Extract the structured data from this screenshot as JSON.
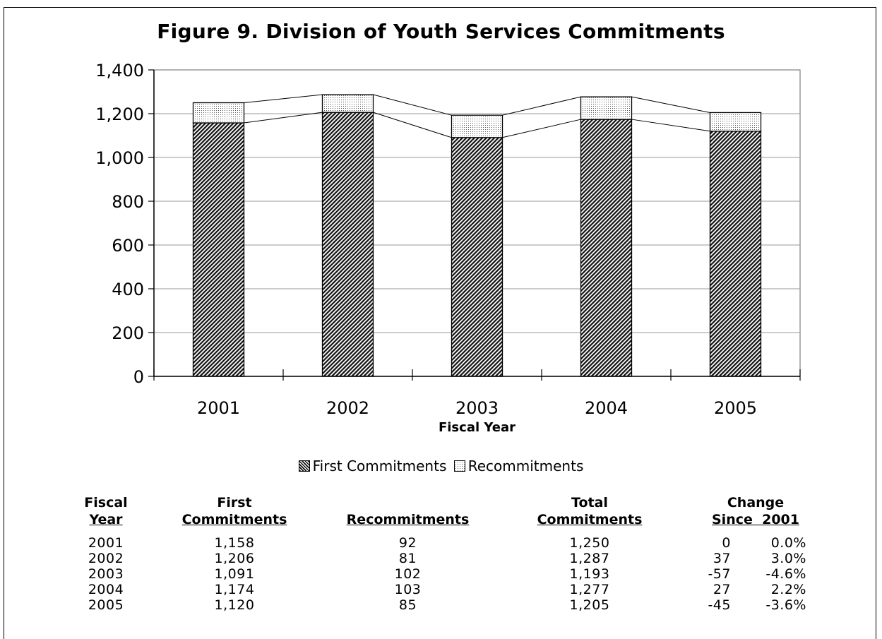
{
  "chart_data": {
    "type": "bar",
    "stacked": true,
    "title": "Figure 9.  Division of Youth Services Commitments",
    "xlabel": "Fiscal Year",
    "ylabel": "",
    "categories": [
      "2001",
      "2002",
      "2003",
      "2004",
      "2005"
    ],
    "series": [
      {
        "name": "First Commitments",
        "values": [
          1158,
          1206,
          1091,
          1174,
          1120
        ],
        "pattern": "dense-hatch"
      },
      {
        "name": "Recommitments",
        "values": [
          92,
          81,
          102,
          103,
          85
        ],
        "pattern": "light-dots"
      }
    ],
    "ylim": [
      0,
      1400
    ],
    "yticks": [
      "0",
      "200",
      "400",
      "600",
      "800",
      "1,000",
      "1,200",
      "1,400"
    ],
    "grid": true,
    "legend": "bottom-center"
  },
  "table": {
    "headers": [
      {
        "top": "Fiscal",
        "bottom": "Year"
      },
      {
        "top": "First",
        "bottom": "Commitments"
      },
      {
        "top": "",
        "bottom": "Recommitments"
      },
      {
        "top": "Total",
        "bottom": "Commitments"
      },
      {
        "top": "Change",
        "bottom": "Since  2001"
      }
    ],
    "rows": [
      {
        "year": "2001",
        "first": "1,158",
        "recommit": "92",
        "total": "1,250",
        "change": "0",
        "pct": "0.0%"
      },
      {
        "year": "2002",
        "first": "1,206",
        "recommit": "81",
        "total": "1,287",
        "change": "37",
        "pct": "3.0%"
      },
      {
        "year": "2003",
        "first": "1,091",
        "recommit": "102",
        "total": "1,193",
        "change": "-57",
        "pct": "-4.6%"
      },
      {
        "year": "2004",
        "first": "1,174",
        "recommit": "103",
        "total": "1,277",
        "change": "27",
        "pct": "2.2%"
      },
      {
        "year": "2005",
        "first": "1,120",
        "recommit": "85",
        "total": "1,205",
        "change": "-45",
        "pct": "-3.6%"
      }
    ]
  }
}
